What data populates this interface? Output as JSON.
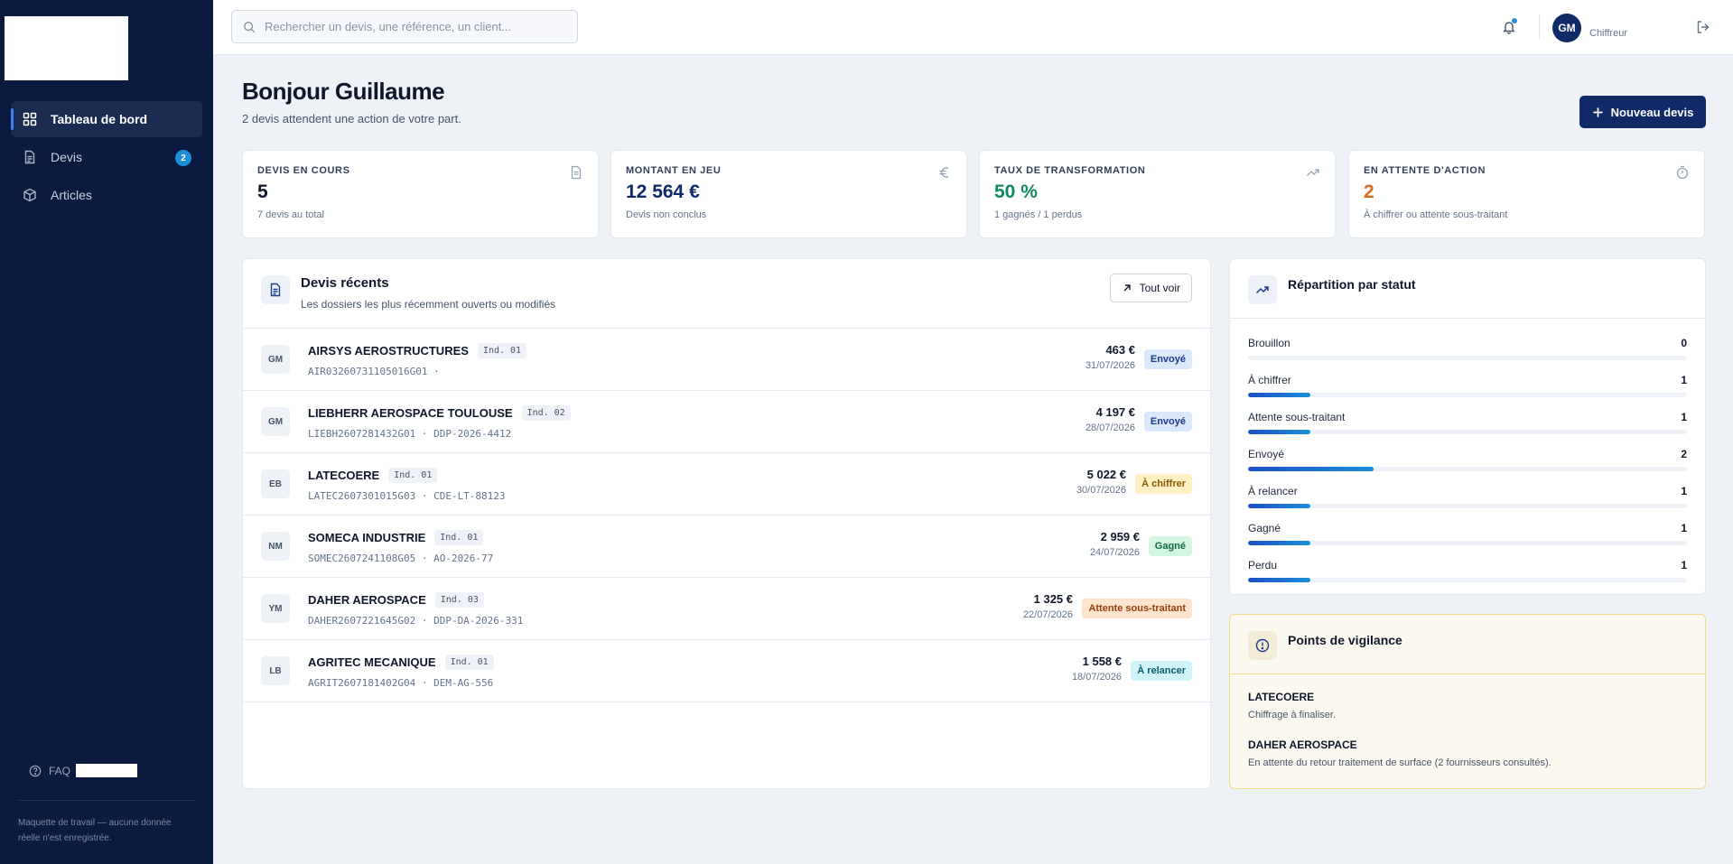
{
  "sidebar": {
    "items": [
      {
        "label": "Tableau de bord",
        "icon": "dashboard-grid-icon",
        "active": true
      },
      {
        "label": "Devis",
        "icon": "document-icon",
        "badge": "2"
      },
      {
        "label": "Articles",
        "icon": "package-icon"
      }
    ],
    "faq_label": "FAQ",
    "disclaimer": "Maquette de travail — aucune donnée réelle n'est enregistrée."
  },
  "topbar": {
    "search_placeholder": "Rechercher un devis, une référence, un client...",
    "user_initials": "GM",
    "user_role": "Chiffreur"
  },
  "header": {
    "greeting": "Bonjour Guillaume",
    "subtitle": "2 devis attendent une action de votre part.",
    "new_button": "Nouveau devis"
  },
  "kpis": [
    {
      "label": "DEVIS EN COURS",
      "value": "5",
      "sub": "7 devis au total",
      "color": "#0f172a",
      "icon": "document-icon"
    },
    {
      "label": "MONTANT EN JEU",
      "value": "12 564 €",
      "sub": "Devis non conclus",
      "color": "#0f2a66",
      "icon": "euro-icon"
    },
    {
      "label": "TAUX DE TRANSFORMATION",
      "value": "50 %",
      "sub": "1 gagnés / 1 perdus",
      "color": "#0e8a5f",
      "icon": "trending-up-icon"
    },
    {
      "label": "EN ATTENTE D'ACTION",
      "value": "2",
      "sub": "À chiffrer ou attente sous-traitant",
      "color": "#dd6b20",
      "icon": "timer-icon"
    }
  ],
  "recent": {
    "title": "Devis récents",
    "subtitle": "Les dossiers les plus récemment ouverts ou modifiés",
    "see_all": "Tout voir",
    "rows": [
      {
        "initials": "GM",
        "client": "AIRSYS AEROSTRUCTURES",
        "ind": "Ind. 01",
        "ref": "AIR03260731105016G01 ·",
        "amount": "463 €",
        "date": "31/07/2026",
        "status": "Envoyé",
        "status_bg": "#dbe7fb",
        "status_fg": "#1e3a8a"
      },
      {
        "initials": "GM",
        "client": "LIEBHERR AEROSPACE TOULOUSE",
        "ind": "Ind. 02",
        "ref": "LIEBH2607281432G01 · DDP-2026-4412",
        "amount": "4 197 €",
        "date": "28/07/2026",
        "status": "Envoyé",
        "status_bg": "#dbe7fb",
        "status_fg": "#1e3a8a"
      },
      {
        "initials": "EB",
        "client": "LATECOERE",
        "ind": "Ind. 01",
        "ref": "LATEC2607301015G03 · CDE-LT-88123",
        "amount": "5 022 €",
        "date": "30/07/2026",
        "status": "À chiffrer",
        "status_bg": "#fdf1c4",
        "status_fg": "#8a5a00"
      },
      {
        "initials": "NM",
        "client": "SOMECA INDUSTRIE",
        "ind": "Ind. 01",
        "ref": "SOMEC2607241108G05 · AO-2026-77",
        "amount": "2 959 €",
        "date": "24/07/2026",
        "status": "Gagné",
        "status_bg": "#d5f5e3",
        "status_fg": "#116b3f"
      },
      {
        "initials": "YM",
        "client": "DAHER AEROSPACE",
        "ind": "Ind. 03",
        "ref": "DAHER2607221645G02 · DDP-DA-2026-331",
        "amount": "1 325 €",
        "date": "22/07/2026",
        "status": "Attente sous-traitant",
        "status_bg": "#fde4cc",
        "status_fg": "#9a3d0c"
      },
      {
        "initials": "LB",
        "client": "AGRITEC MECANIQUE",
        "ind": "Ind. 01",
        "ref": "AGRIT2607181402G04 · DEM-AG-556",
        "amount": "1 558 €",
        "date": "18/07/2026",
        "status": "À relancer",
        "status_bg": "#cff4f8",
        "status_fg": "#0b5e6b"
      }
    ]
  },
  "distribution": {
    "title": "Répartition par statut",
    "max": 7,
    "items": [
      {
        "label": "Brouillon",
        "count": 0
      },
      {
        "label": "À chiffrer",
        "count": 1
      },
      {
        "label": "Attente sous-traitant",
        "count": 1
      },
      {
        "label": "Envoyé",
        "count": 2
      },
      {
        "label": "À relancer",
        "count": 1
      },
      {
        "label": "Gagné",
        "count": 1
      },
      {
        "label": "Perdu",
        "count": 1
      }
    ]
  },
  "vigilance": {
    "title": "Points de vigilance",
    "items": [
      {
        "name": "LATECOERE",
        "desc": "Chiffrage à finaliser."
      },
      {
        "name": "DAHER AEROSPACE",
        "desc": "En attente du retour traitement de surface (2 fournisseurs consultés)."
      }
    ]
  }
}
